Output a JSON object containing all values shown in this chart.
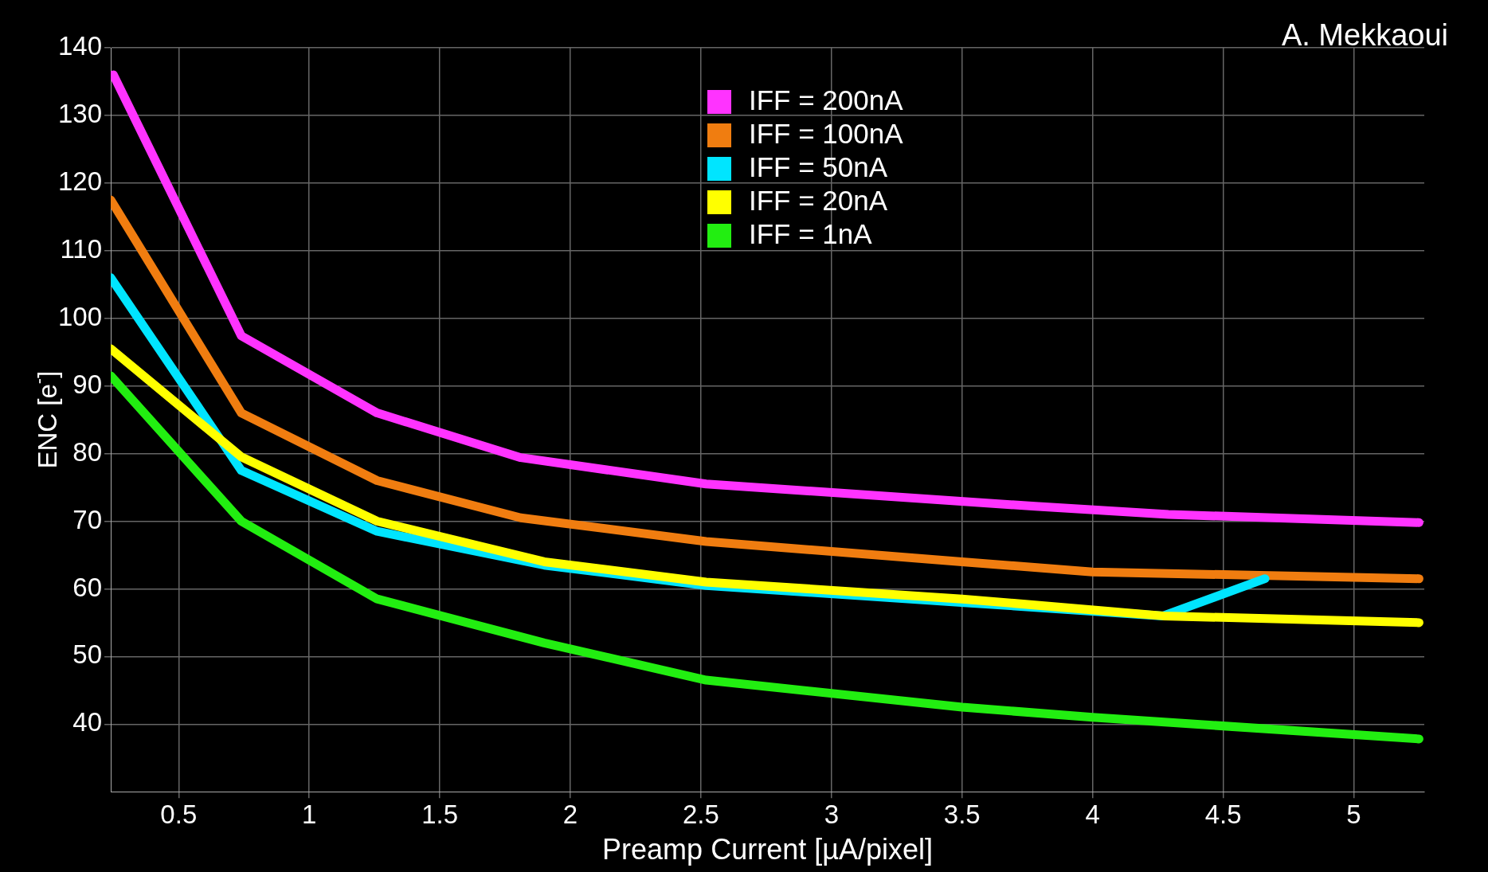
{
  "chart_data": {
    "type": "line",
    "xlabel": "Preamp Current [µA/pixel]",
    "ylabel": "ENC [e$^{-}$]",
    "annotations": [
      "A. Mekkaoui"
    ],
    "xlim": [
      0.24,
      5.27
    ],
    "xticks": [
      0.5,
      1,
      1.5,
      2,
      2.5,
      3,
      3.5,
      4,
      4.5,
      5
    ],
    "ylim": [
      30,
      140
    ],
    "yticks": [
      40,
      50,
      60,
      70,
      80,
      90,
      100,
      110,
      120,
      130,
      140
    ],
    "grid": true,
    "legend": "top",
    "marker": "none",
    "line_style": "solid",
    "series": [
      {
        "name": "IFF = 200nA",
        "color": "#ff33ff",
        "x": [
          0.25,
          0.74,
          1.26,
          1.81,
          2.52,
          3.78,
          4.29,
          5.25
        ],
        "values": [
          136,
          97.4,
          86,
          79.4,
          75.5,
          72.2,
          71,
          69.8
        ]
      },
      {
        "name": "IFF = 100nA",
        "color": "#f07d10",
        "x": [
          0.24,
          0.74,
          1.26,
          1.81,
          2.52,
          3.5,
          4,
          5.25
        ],
        "values": [
          117.5,
          86,
          76,
          70.5,
          67,
          64,
          62.5,
          61.5
        ]
      },
      {
        "name": "IFF = 50nA",
        "color": "#00e5ff",
        "x": [
          0.24,
          0.74,
          1.26,
          1.9,
          2.52,
          3.5,
          4.27,
          4.66
        ],
        "values": [
          106,
          77.5,
          68.5,
          63.5,
          60.5,
          null,
          56,
          61.5
        ]
      },
      {
        "name": "IFF = 20nA",
        "color": "#ffff00",
        "x": [
          0.24,
          0.74,
          1.26,
          1.9,
          2.52,
          3.5,
          4.27,
          5.25
        ],
        "values": [
          95.5,
          79.5,
          70,
          64,
          61,
          58.5,
          56,
          55
        ]
      },
      {
        "name": "IFF = 1nA",
        "color": "#22ee11",
        "x": [
          0.24,
          0.74,
          1.26,
          1.9,
          2.52,
          3.5,
          4,
          5.25
        ],
        "values": [
          91.5,
          70,
          58.5,
          52,
          46.5,
          42.5,
          41,
          37.8
        ]
      }
    ]
  }
}
